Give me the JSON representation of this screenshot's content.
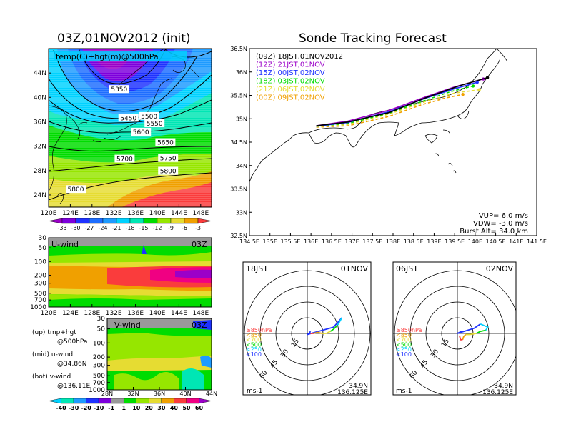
{
  "titles": {
    "left": "03Z,01NOV2012 (init)",
    "right": "Sonde Tracking Forecast",
    "map_label": "temp(C)+hgt(m)@500hPa",
    "uwind": "U-wind",
    "uwind_time": "03Z",
    "vwind": "V-wind",
    "vwind_time": "03Z",
    "hodo_left_time": "18JST",
    "hodo_left_date": "01NOV",
    "hodo_right_time": "06JST",
    "hodo_right_date": "02NOV",
    "hodo_loc_left": [
      "34.9N",
      "136.125E"
    ],
    "hodo_loc_right": [
      "34.9N",
      "136.125E"
    ],
    "hodo_unit": "ms-1"
  },
  "notes": {
    "up": [
      "(up) tmp+hgt",
      "@500hPa"
    ],
    "mid": [
      "(mid) u-wind",
      "@34.86N"
    ],
    "bot": [
      "(bot) v-wind",
      "@136.11E"
    ]
  },
  "track_info": {
    "vup": "VUP= 6.0 m/s",
    "vdw": "VDW= -3.0 m/s",
    "burst": "Burst Alt= 34.0 km"
  },
  "colors": {
    "purple": "#9b00c8",
    "blue": "#1e32ff",
    "lightblue": "#1e9bff",
    "cyan": "#00d2ff",
    "teal": "#00e6b4",
    "green": "#00dc00",
    "lime": "#96e600",
    "yellow": "#e6dc32",
    "orange": "#f0a000",
    "red": "#fa3c3c",
    "magenta": "#f00082",
    "gray": "#999999"
  },
  "chart_data": [
    {
      "type": "heatmap",
      "name": "temp+hgt@500hPa",
      "title": "03Z,01NOV2012 (init)",
      "x_ticks": [
        "120E",
        "124E",
        "128E",
        "132E",
        "136E",
        "140E",
        "144E",
        "148E"
      ],
      "y_ticks": [
        "24N",
        "28N",
        "32N",
        "36N",
        "40N",
        "44N"
      ],
      "xlim": [
        120,
        150
      ],
      "ylim": [
        22,
        48
      ],
      "colorbar": {
        "labels": [
          "-33",
          "-30",
          "-27",
          "-24",
          "-21",
          "-18",
          "-15",
          "-12",
          "-9",
          "-6",
          "-3"
        ],
        "colors": [
          "#9b00c8",
          "#7d00dc",
          "#1e32ff",
          "#1e6eff",
          "#1e9bff",
          "#00d2ff",
          "#00e6b4",
          "#00dc00",
          "#96e600",
          "#e6dc32",
          "#f0a000",
          "#fa3c3c"
        ]
      },
      "contour_labels": [
        {
          "text": "5350",
          "lon": 133.0,
          "lat": 41.3
        },
        {
          "text": "5450",
          "lon": 134.7,
          "lat": 36.6
        },
        {
          "text": "5500",
          "lon": 138.5,
          "lat": 36.9
        },
        {
          "text": "5550",
          "lon": 139.5,
          "lat": 35.7
        },
        {
          "text": "5600",
          "lon": 137.0,
          "lat": 34.3
        },
        {
          "text": "5650",
          "lon": 141.5,
          "lat": 32.6
        },
        {
          "text": "5700",
          "lon": 134.0,
          "lat": 29.9
        },
        {
          "text": "5750",
          "lon": 142.0,
          "lat": 30.0
        },
        {
          "text": "5800",
          "lon": 142.0,
          "lat": 27.9
        },
        {
          "text": "5800",
          "lon": 125.0,
          "lat": 24.9
        }
      ]
    },
    {
      "type": "heatmap",
      "name": "U-wind cross section",
      "x_ticks": [
        "120E",
        "124E",
        "128E",
        "132E",
        "136E",
        "140E",
        "144E",
        "148E"
      ],
      "y_ticks": [
        "30",
        "50",
        "100",
        "200",
        "300",
        "500",
        "700",
        "1000"
      ],
      "y_scale": "log-pressure"
    },
    {
      "type": "heatmap",
      "name": "V-wind cross section",
      "x_ticks": [
        "28N",
        "32N",
        "36N",
        "40N",
        "44N"
      ],
      "y_ticks": [
        "30",
        "50",
        "100",
        "200",
        "300",
        "500",
        "700",
        "1000"
      ],
      "colorbar": {
        "labels": [
          "-40",
          "-30",
          "-20",
          "-10",
          "-1",
          "1",
          "10",
          "20",
          "30",
          "40",
          "50",
          "60"
        ],
        "colors": [
          "#00d2ff",
          "#00e6b4",
          "#1e9bff",
          "#1e32ff",
          "#7d00dc",
          "#999999",
          "#00dc00",
          "#96e600",
          "#e6dc32",
          "#f0a000",
          "#fa3c3c",
          "#f00082",
          "#9b00c8"
        ]
      }
    },
    {
      "type": "line",
      "name": "Sonde tracks",
      "x_ticks": [
        "134.5E",
        "135E",
        "135.5E",
        "136E",
        "136.5E",
        "137E",
        "137.5E",
        "138E",
        "138.5E",
        "139E",
        "139.5E",
        "140E",
        "140.5E",
        "141E",
        "141.5E"
      ],
      "y_ticks": [
        "32.5N",
        "33N",
        "33.5N",
        "34N",
        "34.5N",
        "35N",
        "35.5N",
        "36N",
        "36.5N"
      ],
      "xlim": [
        134.5,
        141.5
      ],
      "ylim": [
        32.5,
        36.5
      ],
      "series": [
        {
          "name": "(09Z)  18JST,01NOV2012",
          "color": "#000000",
          "x": [
            136.13,
            136.9,
            137.9,
            138.8,
            139.6,
            140.3
          ],
          "y": [
            34.85,
            34.93,
            35.13,
            35.45,
            35.7,
            35.88
          ]
        },
        {
          "name": "(12Z)  21JST,01NOV",
          "color": "#9b00c8",
          "x": [
            136.13,
            136.9,
            137.9,
            138.8,
            139.5,
            140.2
          ],
          "y": [
            34.85,
            34.95,
            35.18,
            35.47,
            35.68,
            35.85
          ]
        },
        {
          "name": "(15Z)  00JST,02NOV",
          "color": "#1e32ff",
          "x": [
            136.13,
            136.9,
            137.9,
            138.8,
            139.5,
            140.05
          ],
          "y": [
            34.84,
            34.92,
            35.15,
            35.44,
            35.64,
            35.78
          ]
        },
        {
          "name": "(18Z)  03JST,02NOV",
          "color": "#00dc00",
          "x": [
            136.13,
            136.9,
            137.9,
            138.8,
            139.4,
            139.95
          ],
          "y": [
            34.84,
            34.9,
            35.12,
            35.4,
            35.58,
            35.7
          ]
        },
        {
          "name": "(21Z)  06JST,02NOV",
          "color": "#e6dc32",
          "x": [
            136.13,
            136.9,
            137.9,
            138.8,
            139.5,
            140.1
          ],
          "y": [
            34.83,
            34.88,
            35.1,
            35.37,
            35.55,
            35.62
          ]
        },
        {
          "name": "(00Z)  09JST,02NOV",
          "color": "#f0a000",
          "x": [
            136.13,
            136.9,
            137.9,
            138.7,
            139.3,
            139.7
          ],
          "y": [
            34.82,
            34.85,
            35.05,
            35.3,
            35.45,
            35.52
          ]
        }
      ]
    },
    {
      "type": "line",
      "name": "Hodograph 18JST 01NOV",
      "ring_labels": [
        "15",
        "30",
        "45",
        "60"
      ],
      "legend": [
        {
          "text": "≥850hPa",
          "color": "#fa3c3c"
        },
        {
          "text": "<850",
          "color": "#f0a000"
        },
        {
          "text": "<700",
          "color": "#e6dc32"
        },
        {
          "text": "<500",
          "color": "#00dc00"
        },
        {
          "text": "<250",
          "color": "#00d2ff"
        },
        {
          "text": "<100",
          "color": "#1e32ff"
        }
      ],
      "segments": [
        {
          "color": "#1e32ff",
          "u": [
            0,
            2,
            3
          ],
          "v": [
            -1,
            0,
            2
          ]
        },
        {
          "color": "#1e32ff",
          "u": [
            0,
            25,
            33
          ],
          "v": [
            -1,
            6,
            15
          ]
        },
        {
          "color": "#00d2ff",
          "u": [
            33,
            29
          ],
          "v": [
            15,
            8
          ]
        },
        {
          "color": "#00dc00",
          "u": [
            29,
            25,
            22
          ],
          "v": [
            8,
            4,
            2
          ]
        },
        {
          "color": "#e6dc32",
          "u": [
            22,
            18,
            14
          ],
          "v": [
            2,
            0,
            0
          ]
        },
        {
          "color": "#f0a000",
          "u": [
            14,
            10,
            6
          ],
          "v": [
            0,
            1,
            0
          ]
        },
        {
          "color": "#fa3c3c",
          "u": [
            6,
            3
          ],
          "v": [
            0,
            0
          ]
        }
      ]
    },
    {
      "type": "line",
      "name": "Hodograph 06JST 02NOV",
      "ring_labels": [
        "15",
        "30",
        "45",
        "60"
      ],
      "legend": [
        {
          "text": "≥850hPa",
          "color": "#fa3c3c"
        },
        {
          "text": "<850",
          "color": "#f0a000"
        },
        {
          "text": "<700",
          "color": "#e6dc32"
        },
        {
          "text": "<500",
          "color": "#00dc00"
        },
        {
          "text": "<250",
          "color": "#00d2ff"
        },
        {
          "text": "<100",
          "color": "#1e32ff"
        }
      ],
      "segments": [
        {
          "color": "#1e32ff",
          "u": [
            0,
            2,
            4
          ],
          "v": [
            0,
            1,
            2
          ]
        },
        {
          "color": "#1e32ff",
          "u": [
            0,
            16,
            22
          ],
          "v": [
            0,
            5,
            9
          ]
        },
        {
          "color": "#00d2ff",
          "u": [
            22,
            29,
            27
          ],
          "v": [
            9,
            6,
            3
          ]
        },
        {
          "color": "#00dc00",
          "u": [
            27,
            22,
            18
          ],
          "v": [
            3,
            2,
            0
          ]
        },
        {
          "color": "#e6dc32",
          "u": [
            18,
            12,
            8
          ],
          "v": [
            0,
            -1,
            -1
          ]
        },
        {
          "color": "#f0a000",
          "u": [
            8,
            6,
            5
          ],
          "v": [
            -1,
            -3,
            -6
          ]
        },
        {
          "color": "#fa3c3c",
          "u": [
            5,
            3,
            2
          ],
          "v": [
            -6,
            -6,
            -2
          ]
        }
      ]
    }
  ]
}
